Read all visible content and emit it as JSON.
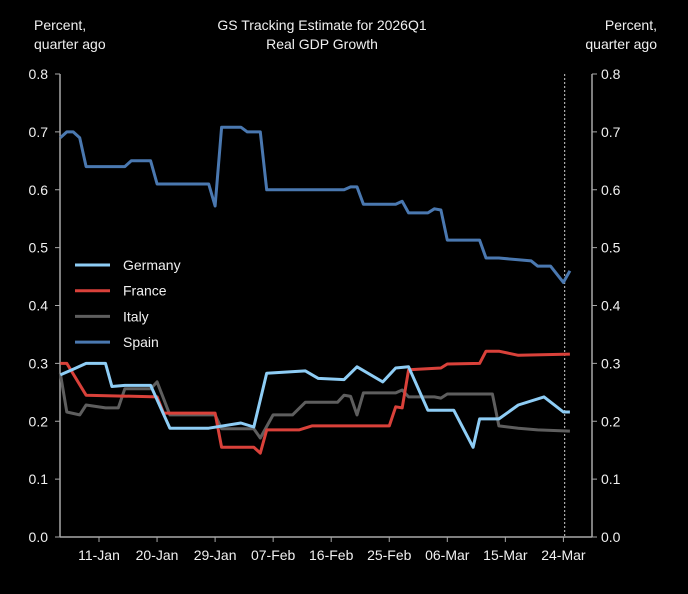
{
  "chart_data": {
    "type": "line",
    "title": "GS Tracking Estimate for 2026Q1",
    "subtitle": "Real GDP Growth",
    "ylabel_left": [
      "Percent,",
      "quarter ago"
    ],
    "ylabel_right": [
      "Percent,",
      "quarter ago"
    ],
    "x_unit": "days since 01-Jan-2026",
    "xlim": [
      4,
      87
    ],
    "ylim": [
      0,
      0.8
    ],
    "yticks": [
      "0.0",
      "0.1",
      "0.2",
      "0.3",
      "0.4",
      "0.5",
      "0.6",
      "0.7",
      "0.8"
    ],
    "xticks": [
      {
        "day": 10,
        "label": "11-Jan"
      },
      {
        "day": 19,
        "label": "20-Jan"
      },
      {
        "day": 28,
        "label": "29-Jan"
      },
      {
        "day": 37,
        "label": "07-Feb"
      },
      {
        "day": 46,
        "label": "16-Feb"
      },
      {
        "day": 55,
        "label": "25-Feb"
      },
      {
        "day": 64,
        "label": "06-Mar"
      },
      {
        "day": 73,
        "label": "15-Mar"
      },
      {
        "day": 82,
        "label": "24-Mar"
      }
    ],
    "reference_line_day": 82.2,
    "grid": false,
    "legend_position": "left-middle",
    "series": [
      {
        "name": "Germany",
        "color": "#8ecdf5",
        "points": [
          [
            4,
            0.28
          ],
          [
            6,
            0.29
          ],
          [
            8,
            0.3
          ],
          [
            11,
            0.3
          ],
          [
            12,
            0.26
          ],
          [
            14,
            0.262
          ],
          [
            18,
            0.262
          ],
          [
            21,
            0.188
          ],
          [
            27,
            0.188
          ],
          [
            32,
            0.197
          ],
          [
            34,
            0.19
          ],
          [
            36,
            0.283
          ],
          [
            42,
            0.287
          ],
          [
            44,
            0.274
          ],
          [
            48,
            0.272
          ],
          [
            50,
            0.294
          ],
          [
            54,
            0.268
          ],
          [
            56,
            0.292
          ],
          [
            58,
            0.294
          ],
          [
            61,
            0.219
          ],
          [
            65,
            0.219
          ],
          [
            68,
            0.155
          ],
          [
            69,
            0.204
          ],
          [
            72,
            0.204
          ],
          [
            75,
            0.228
          ],
          [
            79,
            0.242
          ],
          [
            82,
            0.216
          ],
          [
            83,
            0.216
          ]
        ]
      },
      {
        "name": "France",
        "color": "#d9413a",
        "points": [
          [
            4,
            0.3
          ],
          [
            5,
            0.3
          ],
          [
            8,
            0.245
          ],
          [
            19,
            0.242
          ],
          [
            20,
            0.214
          ],
          [
            28,
            0.214
          ],
          [
            29,
            0.155
          ],
          [
            34,
            0.155
          ],
          [
            35,
            0.145
          ],
          [
            36,
            0.185
          ],
          [
            41,
            0.185
          ],
          [
            43,
            0.192
          ],
          [
            55,
            0.192
          ],
          [
            56,
            0.225
          ],
          [
            57,
            0.223
          ],
          [
            58,
            0.289
          ],
          [
            63,
            0.292
          ],
          [
            64,
            0.299
          ],
          [
            69,
            0.3
          ],
          [
            70,
            0.321
          ],
          [
            72,
            0.321
          ],
          [
            75,
            0.314
          ],
          [
            83,
            0.316
          ]
        ]
      },
      {
        "name": "Italy",
        "color": "#5e5e5e",
        "points": [
          [
            4,
            0.283
          ],
          [
            5,
            0.216
          ],
          [
            7,
            0.211
          ],
          [
            8,
            0.228
          ],
          [
            11,
            0.223
          ],
          [
            13,
            0.223
          ],
          [
            14,
            0.256
          ],
          [
            18,
            0.256
          ],
          [
            19,
            0.268
          ],
          [
            21,
            0.211
          ],
          [
            28,
            0.211
          ],
          [
            29,
            0.187
          ],
          [
            34,
            0.187
          ],
          [
            35,
            0.171
          ],
          [
            37,
            0.211
          ],
          [
            40,
            0.211
          ],
          [
            42,
            0.233
          ],
          [
            47,
            0.233
          ],
          [
            48,
            0.245
          ],
          [
            49,
            0.243
          ],
          [
            50,
            0.211
          ],
          [
            51,
            0.249
          ],
          [
            56,
            0.249
          ],
          [
            57,
            0.254
          ],
          [
            58,
            0.242
          ],
          [
            62,
            0.242
          ],
          [
            63,
            0.24
          ],
          [
            64,
            0.247
          ],
          [
            71,
            0.247
          ],
          [
            72,
            0.192
          ],
          [
            75,
            0.188
          ],
          [
            78,
            0.185
          ],
          [
            83,
            0.183
          ]
        ]
      },
      {
        "name": "Spain",
        "color": "#4a78b0",
        "points": [
          [
            4,
            0.69
          ],
          [
            5,
            0.7
          ],
          [
            6,
            0.7
          ],
          [
            7,
            0.69
          ],
          [
            8,
            0.64
          ],
          [
            14,
            0.64
          ],
          [
            15,
            0.65
          ],
          [
            18,
            0.65
          ],
          [
            19,
            0.61
          ],
          [
            27,
            0.61
          ],
          [
            28,
            0.572
          ],
          [
            29,
            0.708
          ],
          [
            32,
            0.708
          ],
          [
            33,
            0.7
          ],
          [
            35,
            0.7
          ],
          [
            36,
            0.6
          ],
          [
            48,
            0.6
          ],
          [
            49,
            0.605
          ],
          [
            50,
            0.605
          ],
          [
            51,
            0.575
          ],
          [
            56,
            0.575
          ],
          [
            57,
            0.58
          ],
          [
            58,
            0.56
          ],
          [
            61,
            0.56
          ],
          [
            62,
            0.567
          ],
          [
            63,
            0.565
          ],
          [
            64,
            0.513
          ],
          [
            69,
            0.513
          ],
          [
            70,
            0.482
          ],
          [
            72,
            0.482
          ],
          [
            75,
            0.479
          ],
          [
            77,
            0.477
          ],
          [
            78,
            0.468
          ],
          [
            80,
            0.468
          ],
          [
            82,
            0.44
          ],
          [
            83,
            0.46
          ]
        ]
      }
    ]
  }
}
